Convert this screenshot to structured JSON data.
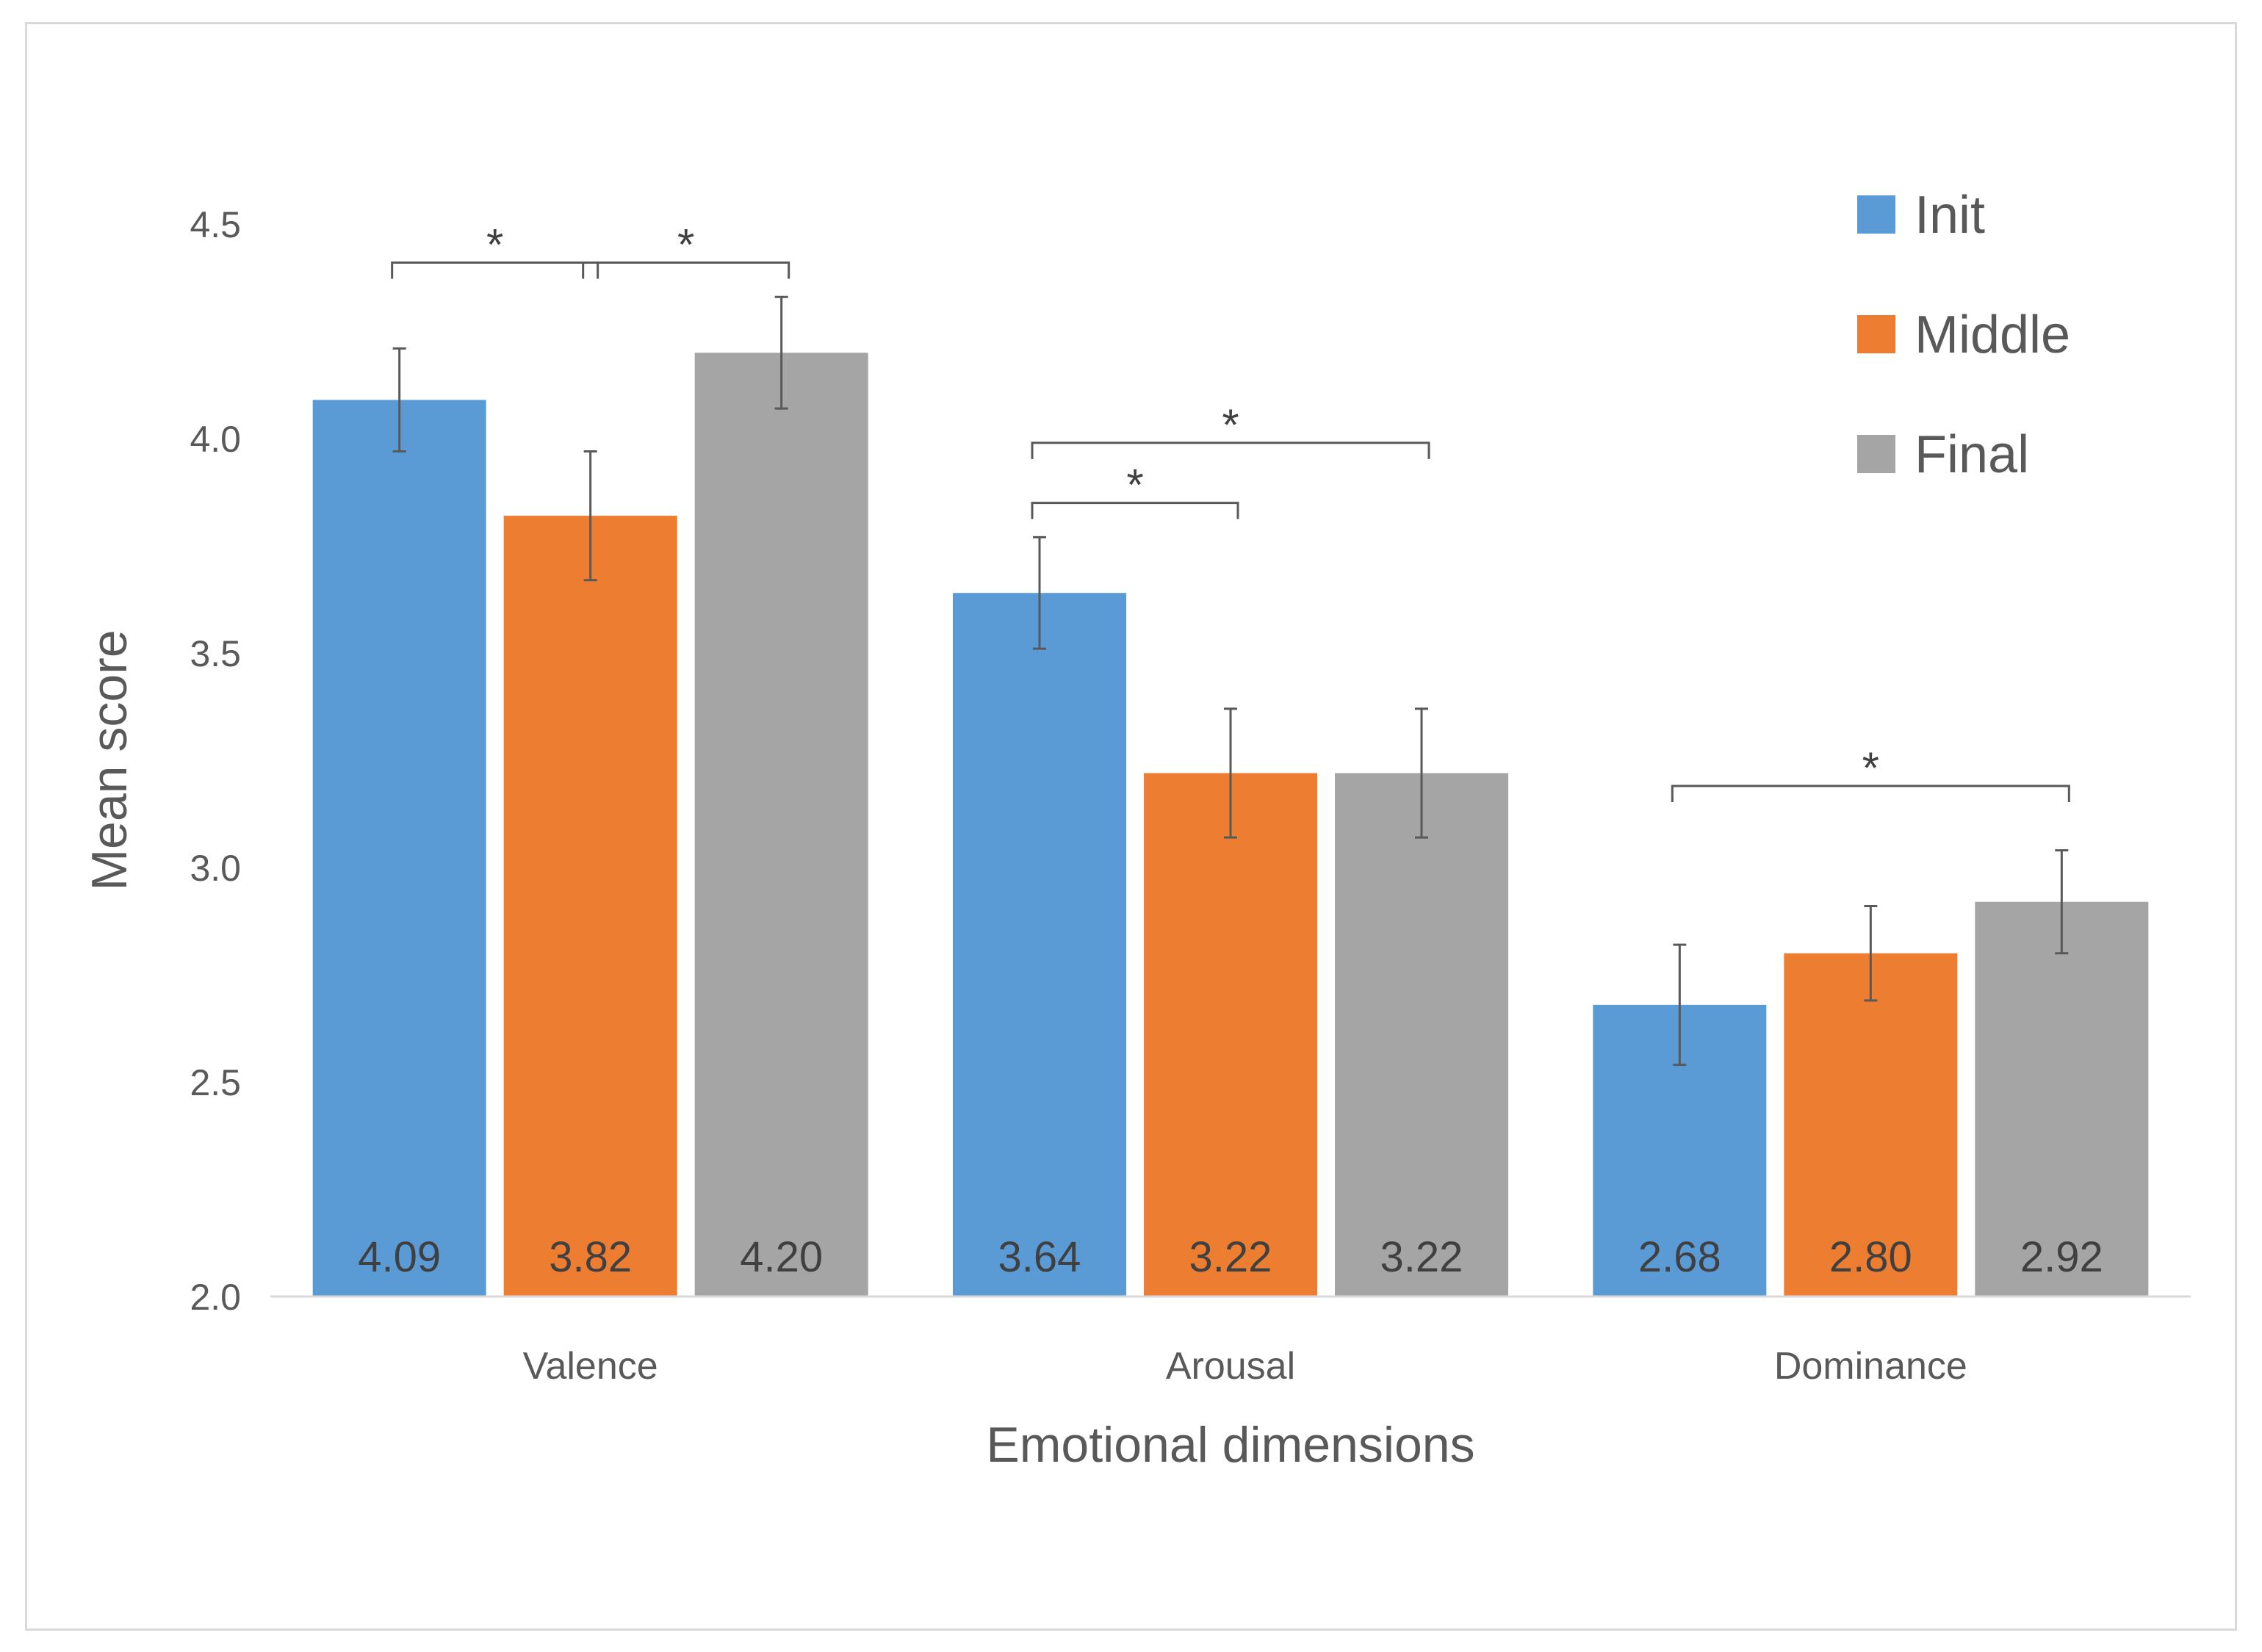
{
  "chart_data": {
    "type": "bar",
    "xlabel": "Emotional dimensions",
    "ylabel": "Mean score",
    "ylim": [
      2.0,
      4.5
    ],
    "yticks": [
      "2.0",
      "2.5",
      "3.0",
      "3.5",
      "4.0",
      "4.5"
    ],
    "categories": [
      "Valence",
      "Arousal",
      "Dominance"
    ],
    "series": [
      {
        "name": "Init",
        "color": "#5b9bd5",
        "values": [
          4.09,
          3.64,
          2.68
        ],
        "labels": [
          "4.09",
          "3.64",
          "2.68"
        ],
        "error": [
          0.12,
          0.13,
          0.14
        ]
      },
      {
        "name": "Middle",
        "color": "#ed7d31",
        "values": [
          3.82,
          3.22,
          2.8
        ],
        "labels": [
          "3.82",
          "3.22",
          "2.80"
        ],
        "error": [
          0.15,
          0.15,
          0.11
        ]
      },
      {
        "name": "Final",
        "color": "#a5a5a5",
        "values": [
          4.2,
          3.22,
          2.92
        ],
        "labels": [
          "4.20",
          "3.22",
          "2.92"
        ],
        "error": [
          0.13,
          0.15,
          0.12
        ]
      }
    ],
    "legend_position": "top-right",
    "grid": false,
    "significance": [
      {
        "category": 0,
        "from": 0,
        "to": 1,
        "level": 4.41,
        "label": "*"
      },
      {
        "category": 0,
        "from": 1,
        "to": 2,
        "level": 4.41,
        "label": "*"
      },
      {
        "category": 1,
        "from": 0,
        "to": 1,
        "level": 3.85,
        "label": "*"
      },
      {
        "category": 1,
        "from": 0,
        "to": 2,
        "level": 3.99,
        "label": "*"
      },
      {
        "category": 2,
        "from": 0,
        "to": 2,
        "level": 3.19,
        "label": "*"
      }
    ]
  }
}
